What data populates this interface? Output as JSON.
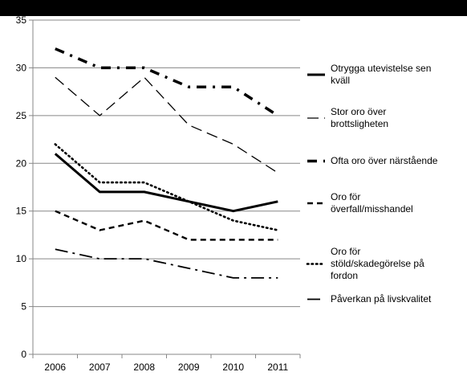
{
  "chart_data": {
    "type": "line",
    "title": "",
    "xlabel": "",
    "ylabel": "",
    "categories": [
      "2006",
      "2007",
      "2008",
      "2009",
      "2010",
      "2011"
    ],
    "ylim": [
      0,
      35
    ],
    "y_ticks": [
      "0",
      "5",
      "10",
      "15",
      "20",
      "25",
      "30",
      "35"
    ],
    "grid": "horizontal",
    "legend_position": "right",
    "series": [
      {
        "name": "Otrygga utevistelse sen kväll",
        "legend_lines": [
          "Otrygga utevistelse sen",
          "kväll"
        ],
        "style": "solid-thick",
        "values": [
          21,
          17,
          17,
          16,
          15,
          16
        ]
      },
      {
        "name": "Stor oro över brottsligheten",
        "legend_lines": [
          "Stor oro över",
          "brottsligheten"
        ],
        "style": "long-dash-thin",
        "values": [
          29,
          25,
          29,
          24,
          22,
          19
        ]
      },
      {
        "name": "Ofta oro över närstående",
        "legend_lines": [
          "Ofta oro över närstående"
        ],
        "style": "dash-dot-thick",
        "values": [
          32,
          30,
          30,
          28,
          28,
          25
        ]
      },
      {
        "name": "Oro för överfall/misshandel",
        "legend_lines": [
          "Oro för",
          "överfall/misshandel"
        ],
        "style": "dash-medium",
        "values": [
          15,
          13,
          14,
          12,
          12,
          12
        ]
      },
      {
        "name": "Oro för stöld/skadegörelse på fordon",
        "legend_lines": [
          "Oro för",
          "stöld/skadegörelse på",
          "fordon"
        ],
        "style": "dotted",
        "values": [
          22,
          18,
          18,
          16,
          14,
          13
        ]
      },
      {
        "name": "Påverkan på livskvalitet",
        "legend_lines": [
          "Påverkan på livskvalitet"
        ],
        "style": "dash-dot-long",
        "values": [
          11,
          10,
          10,
          9,
          8,
          8
        ]
      }
    ]
  }
}
